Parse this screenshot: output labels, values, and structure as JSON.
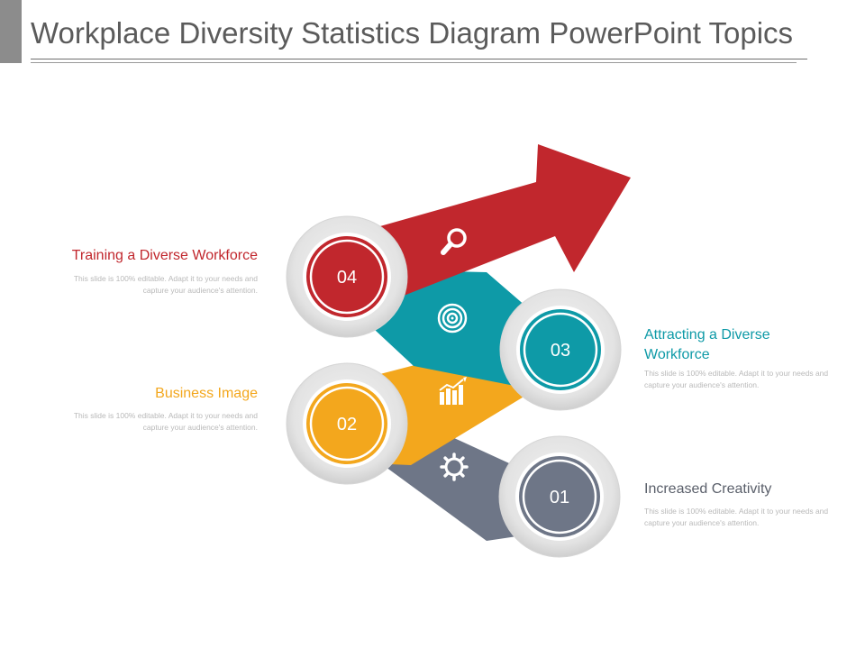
{
  "title": "Workplace Diversity Statistics Diagram PowerPoint Topics",
  "colors": {
    "red": "#c1272d",
    "teal": "#0e9aa7",
    "orange": "#f3a71d",
    "gray": "#6e7687",
    "title_text": "#5b5b5b",
    "desc_text": "#b9b9b9"
  },
  "items": [
    {
      "number": "01",
      "label": "Increased Creativity",
      "description": "This slide is 100% editable. Adapt it to your needs and capture your audience's attention.",
      "icon": "gear-icon",
      "color": "#6e7687"
    },
    {
      "number": "02",
      "label": "Business Image",
      "description": "This slide is 100% editable. Adapt it to your needs and capture your audience's attention.",
      "icon": "bar-chart-growth-icon",
      "color": "#f3a71d"
    },
    {
      "number": "03",
      "label": "Attracting a Diverse Workforce",
      "description": "This slide is 100% editable. Adapt it to your needs and capture your audience's attention.",
      "icon": "target-icon",
      "color": "#0e9aa7"
    },
    {
      "number": "04",
      "label": "Training a Diverse Workforce",
      "description": "This slide is 100% editable. Adapt it to your needs and capture your audience's attention.",
      "icon": "magnifier-icon",
      "color": "#c1272d"
    }
  ]
}
